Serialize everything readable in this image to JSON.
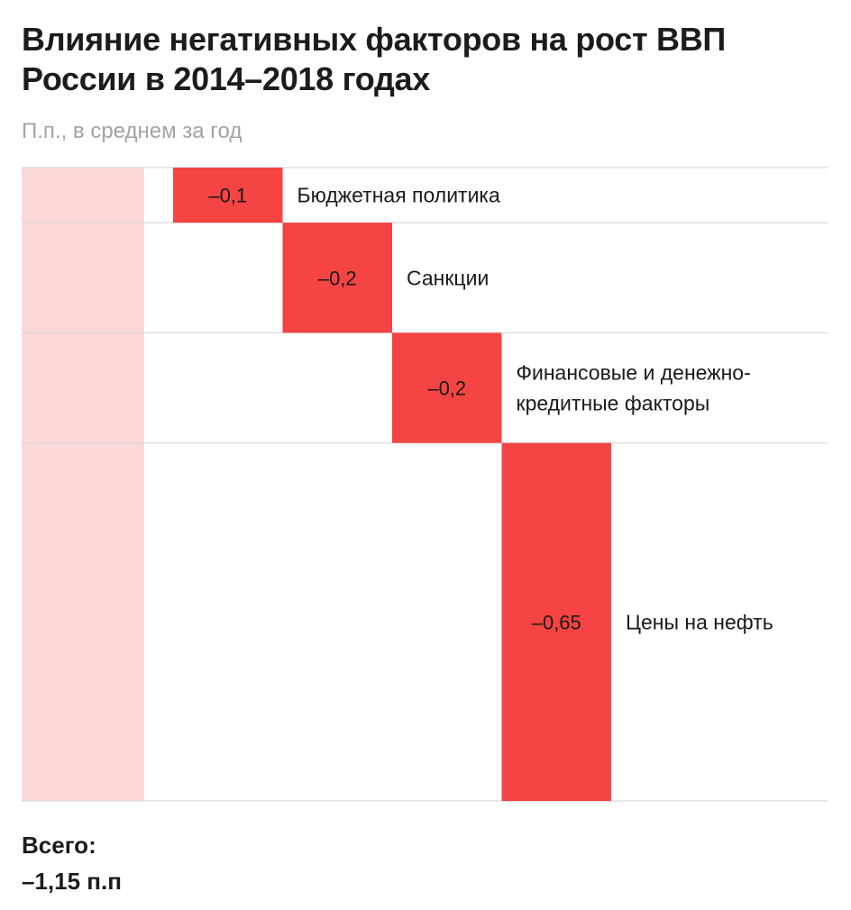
{
  "title": "Влияние негативных факторов на рост ВВП России в 2014–2018 годах",
  "subtitle": "П.п., в среднем за год",
  "total": {
    "label": "Всего:",
    "value_text": "–1,15 п.п"
  },
  "colors": {
    "bar": "#f44444",
    "total_band": "#fdd8d8",
    "grid": "#d9d9d9",
    "value_text": "#1a1a1a",
    "label_text": "#1a1a1a"
  },
  "chart_data": {
    "type": "bar",
    "subtype": "waterfall",
    "title": "Влияние негативных факторов на рост ВВП России в 2014–2018 годах",
    "subtitle": "П.п., в среднем за год",
    "categories": [
      [
        "Бюджетная политика"
      ],
      [
        "Санкции"
      ],
      [
        "Финансовые и денежно-",
        "кредитные факторы"
      ],
      [
        "Цены на нефть"
      ]
    ],
    "values": [
      -0.1,
      -0.2,
      -0.2,
      -0.65
    ],
    "value_labels": [
      "–0,1",
      "–0,2",
      "–0,2",
      "–0,65"
    ],
    "total": -1.15,
    "total_label": "–1,15 п.п",
    "grid": true,
    "legend": "none"
  }
}
